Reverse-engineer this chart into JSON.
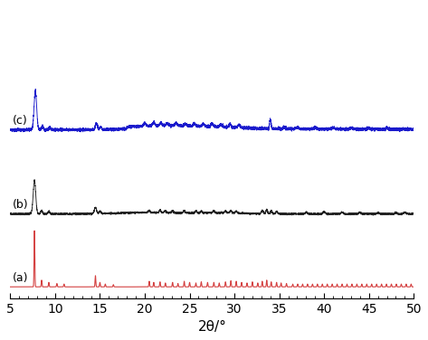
{
  "xlim": [
    5,
    50
  ],
  "xlabel": "2θ/°",
  "xlabel_fontsize": 11,
  "tick_fontsize": 10,
  "colors": {
    "a": "#d44040",
    "b": "#222222",
    "c": "#1a1acc"
  },
  "offsets": {
    "a": 0.0,
    "b": 0.13,
    "c": 0.28
  },
  "scales": {
    "a": 0.1,
    "b": 0.06,
    "c": 0.07
  },
  "background": "#ffffff",
  "xticks": [
    5,
    10,
    15,
    20,
    25,
    30,
    35,
    40,
    45,
    50
  ]
}
